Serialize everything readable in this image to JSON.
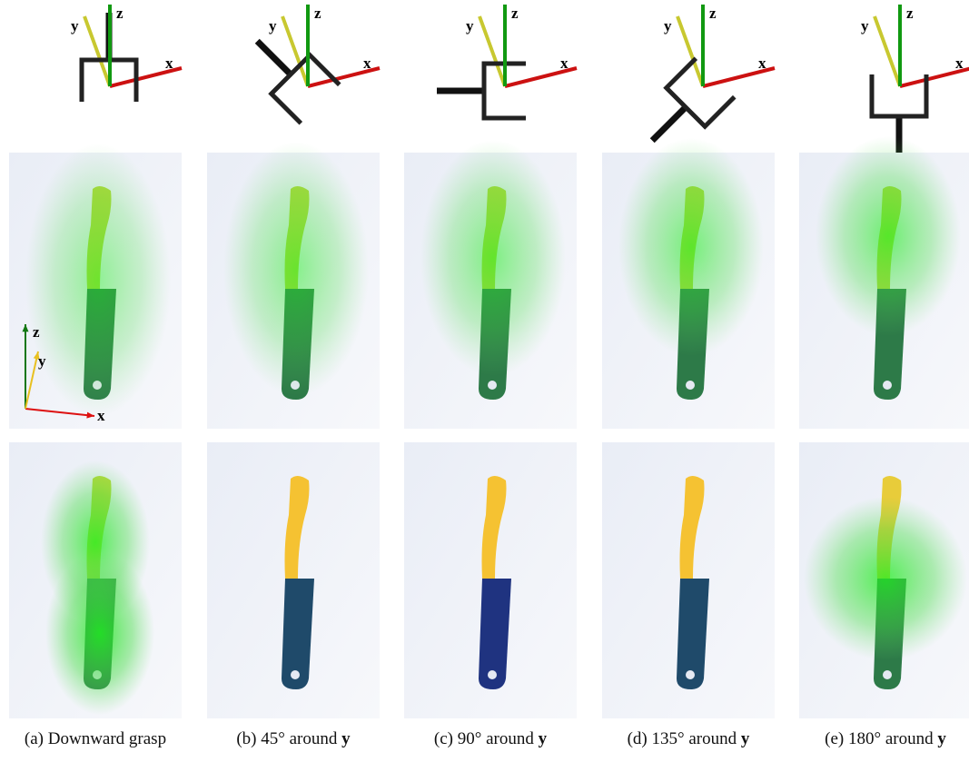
{
  "figure": {
    "panels": [
      {
        "frame_labels": {
          "x": "x",
          "y": "y",
          "z": "z"
        },
        "caption": {
          "label": "(a)",
          "text": "Downward grasp"
        }
      },
      {
        "frame_labels": {
          "x": "x",
          "y": "y",
          "z": "z"
        },
        "caption": {
          "label": "(b)",
          "text": "45° around",
          "axis": "y"
        }
      },
      {
        "frame_labels": {
          "x": "x",
          "y": "y",
          "z": "z"
        },
        "caption": {
          "label": "(c)",
          "text": "90° around",
          "axis": "y"
        }
      },
      {
        "frame_labels": {
          "x": "x",
          "y": "y",
          "z": "z"
        },
        "caption": {
          "label": "(d)",
          "text": "135° around",
          "axis": "y"
        }
      },
      {
        "frame_labels": {
          "x": "x",
          "y": "y",
          "z": "z"
        },
        "caption": {
          "label": "(e)",
          "text": "180° around",
          "axis": "y"
        }
      }
    ],
    "inset_axes": {
      "z": "z",
      "y": "y",
      "x": "x"
    }
  }
}
